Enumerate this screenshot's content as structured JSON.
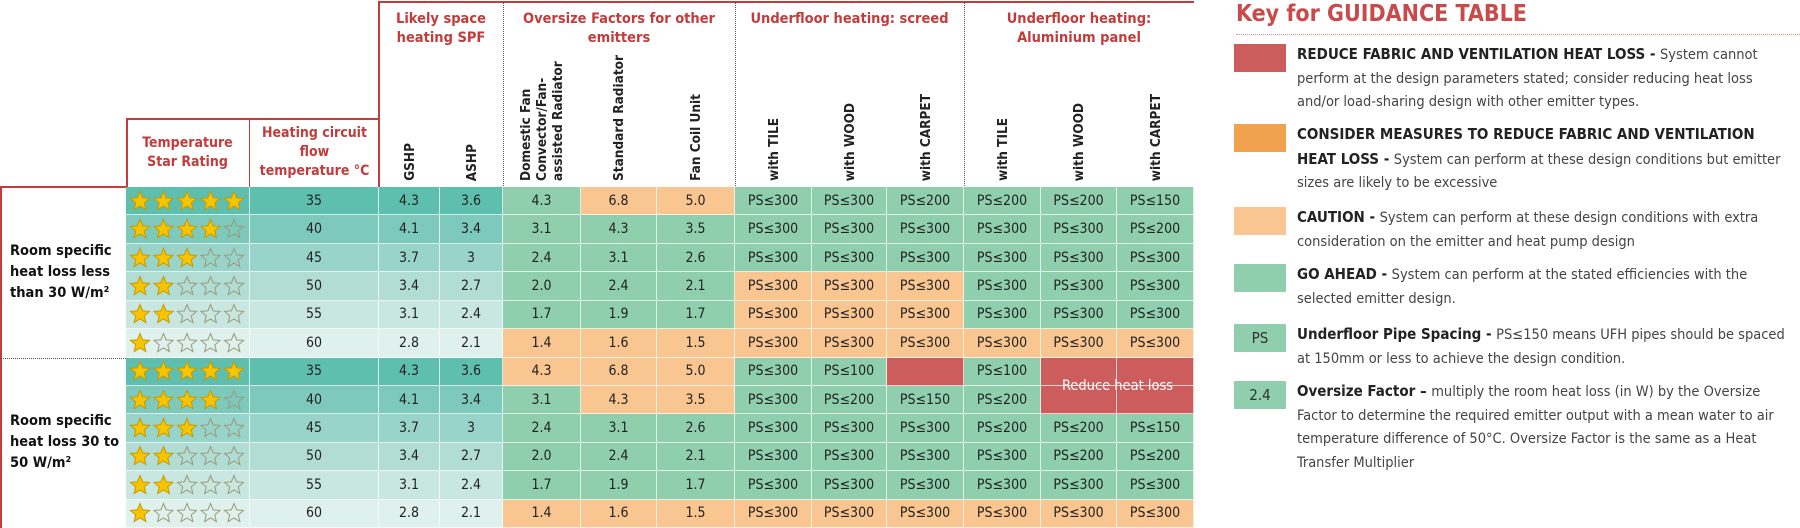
{
  "table": {
    "star_header": "Temperature Star Rating",
    "flow_header": "Heating circuit flow temperature °C",
    "groups": [
      {
        "label": "Likely space heating SPF",
        "columns": [
          "GSHP",
          "ASHP"
        ]
      },
      {
        "label": "Oversize Factors for other emitters",
        "columns": [
          "Domestic Fan Convector/Fan-assisted Radiator",
          "Standard Radiator",
          "Fan Coil Unit"
        ]
      },
      {
        "label": "Underfloor heating: screed",
        "columns": [
          "with TILE",
          "with WOOD",
          "with CARPET"
        ]
      },
      {
        "label": "Underfloor heating: Aluminium panel",
        "columns": [
          "with TILE",
          "with WOOD",
          "with CARPET"
        ]
      }
    ],
    "sections": [
      {
        "label": "Room specific heat loss less than 30 W/m²",
        "rows": [
          {
            "stars": 5,
            "flow": "35",
            "cells": [
              "4.3",
              "3.6",
              "4.3",
              "6.8",
              "5.0",
              "PS≤300",
              "PS≤300",
              "PS≤200",
              "PS≤200",
              "PS≤200",
              "PS≤150"
            ],
            "fills": [
              "#5fbfae",
              "#5fbfae",
              "#8fcfae",
              "#f9c590",
              "#f9c590",
              "#8fcfae",
              "#8fcfae",
              "#8fcfae",
              "#8fcfae",
              "#8fcfae",
              "#8fcfae"
            ]
          },
          {
            "stars": 4,
            "flow": "40",
            "cells": [
              "4.1",
              "3.4",
              "3.1",
              "4.3",
              "3.5",
              "PS≤300",
              "PS≤300",
              "PS≤300",
              "PS≤300",
              "PS≤300",
              "PS≤200"
            ],
            "fills": [
              "#7dcabc",
              "#7dcabc",
              "#8fcfae",
              "#8fcfae",
              "#8fcfae",
              "#8fcfae",
              "#8fcfae",
              "#8fcfae",
              "#8fcfae",
              "#8fcfae",
              "#8fcfae"
            ]
          },
          {
            "stars": 3,
            "flow": "45",
            "cells": [
              "3.7",
              "3",
              "2.4",
              "3.1",
              "2.6",
              "PS≤300",
              "PS≤300",
              "PS≤300",
              "PS≤300",
              "PS≤300",
              "PS≤300"
            ],
            "fills": [
              "#98d4c9",
              "#98d4c9",
              "#8fcfae",
              "#8fcfae",
              "#8fcfae",
              "#8fcfae",
              "#8fcfae",
              "#8fcfae",
              "#8fcfae",
              "#8fcfae",
              "#8fcfae"
            ]
          },
          {
            "stars": 2,
            "flow": "50",
            "cells": [
              "3.4",
              "2.7",
              "2.0",
              "2.4",
              "2.1",
              "PS≤300",
              "PS≤300",
              "PS≤300",
              "PS≤300",
              "PS≤300",
              "PS≤300"
            ],
            "fills": [
              "#b1ddd4",
              "#b1ddd4",
              "#8fcfae",
              "#8fcfae",
              "#8fcfae",
              "#f9c590",
              "#f9c590",
              "#f9c590",
              "#8fcfae",
              "#8fcfae",
              "#8fcfae"
            ]
          },
          {
            "stars": 2,
            "flow": "55",
            "cells": [
              "3.1",
              "2.4",
              "1.7",
              "1.9",
              "1.7",
              "PS≤300",
              "PS≤300",
              "PS≤300",
              "PS≤300",
              "PS≤300",
              "PS≤300"
            ],
            "fills": [
              "#c8e7e0",
              "#c8e7e0",
              "#8fcfae",
              "#8fcfae",
              "#8fcfae",
              "#f9c590",
              "#f9c590",
              "#f9c590",
              "#8fcfae",
              "#8fcfae",
              "#8fcfae"
            ]
          },
          {
            "stars": 1,
            "flow": "60",
            "cells": [
              "2.8",
              "2.1",
              "1.4",
              "1.6",
              "1.5",
              "PS≤300",
              "PS≤300",
              "PS≤300",
              "PS≤300",
              "PS≤300",
              "PS≤300"
            ],
            "fills": [
              "#dff1ec",
              "#dff1ec",
              "#f9c590",
              "#f9c590",
              "#f9c590",
              "#f9c590",
              "#f9c590",
              "#f9c590",
              "#f9c590",
              "#f9c590",
              "#f9c590"
            ]
          }
        ]
      },
      {
        "label": "Room specific heat loss 30 to 50 W/m²",
        "note": "Reduce heat loss",
        "rows": [
          {
            "stars": 5,
            "flow": "35",
            "cells": [
              "4.3",
              "3.6",
              "4.3",
              "6.8",
              "5.0",
              "PS≤300",
              "PS≤100",
              null,
              "PS≤100",
              null,
              null
            ],
            "fills": [
              "#5fbfae",
              "#5fbfae",
              "#f9c590",
              "#f9c590",
              "#f9c590",
              "#8fcfae",
              "#8fcfae",
              "#cd5c5c",
              "#8fcfae",
              "#cd5c5c",
              "#cd5c5c"
            ]
          },
          {
            "stars": 4,
            "flow": "40",
            "cells": [
              "4.1",
              "3.4",
              "3.1",
              "4.3",
              "3.5",
              "PS≤300",
              "PS≤200",
              "PS≤150",
              "PS≤200",
              null,
              null
            ],
            "fills": [
              "#7dcabc",
              "#7dcabc",
              "#8fcfae",
              "#f9c590",
              "#f9c590",
              "#8fcfae",
              "#8fcfae",
              "#8fcfae",
              "#8fcfae",
              "#cd5c5c",
              "#cd5c5c"
            ]
          },
          {
            "stars": 3,
            "flow": "45",
            "cells": [
              "3.7",
              "3",
              "2.4",
              "3.1",
              "2.6",
              "PS≤300",
              "PS≤300",
              "PS≤300",
              "PS≤200",
              "PS≤200",
              "PS≤150"
            ],
            "fills": [
              "#98d4c9",
              "#98d4c9",
              "#8fcfae",
              "#8fcfae",
              "#8fcfae",
              "#8fcfae",
              "#8fcfae",
              "#8fcfae",
              "#8fcfae",
              "#8fcfae",
              "#8fcfae"
            ]
          },
          {
            "stars": 2,
            "flow": "50",
            "cells": [
              "3.4",
              "2.7",
              "2.0",
              "2.4",
              "2.1",
              "PS≤300",
              "PS≤300",
              "PS≤300",
              "PS≤300",
              "PS≤200",
              "PS≤200"
            ],
            "fills": [
              "#b1ddd4",
              "#b1ddd4",
              "#8fcfae",
              "#8fcfae",
              "#8fcfae",
              "#8fcfae",
              "#8fcfae",
              "#8fcfae",
              "#8fcfae",
              "#8fcfae",
              "#8fcfae"
            ]
          },
          {
            "stars": 2,
            "flow": "55",
            "cells": [
              "3.1",
              "2.4",
              "1.7",
              "1.9",
              "1.7",
              "PS≤300",
              "PS≤300",
              "PS≤300",
              "PS≤300",
              "PS≤300",
              "PS≤300"
            ],
            "fills": [
              "#c8e7e0",
              "#c8e7e0",
              "#8fcfae",
              "#8fcfae",
              "#8fcfae",
              "#8fcfae",
              "#8fcfae",
              "#8fcfae",
              "#8fcfae",
              "#8fcfae",
              "#8fcfae"
            ]
          },
          {
            "stars": 1,
            "flow": "60",
            "cells": [
              "2.8",
              "2.1",
              "1.4",
              "1.6",
              "1.5",
              "PS≤300",
              "PS≤300",
              "PS≤300",
              "PS≤300",
              "PS≤300",
              "PS≤300"
            ],
            "fills": [
              "#dff1ec",
              "#dff1ec",
              "#f9c590",
              "#f9c590",
              "#f9c590",
              "#f9c590",
              "#f9c590",
              "#f9c590",
              "#f9c590",
              "#f9c590",
              "#f9c590"
            ]
          }
        ]
      }
    ]
  },
  "key": {
    "title": "Key for GUIDANCE TABLE",
    "items": [
      {
        "swatch": "#cd5c5c",
        "heading": "REDUCE FABRIC AND VENTILATION HEAT LOSS -",
        "text": "System cannot perform at the design parameters stated; consider reducing heat loss and/or load-sharing design with other emitter types."
      },
      {
        "swatch": "#f0a24f",
        "heading": "CONSIDER MEASURES TO REDUCE FABRIC AND VENTILATION HEAT LOSS -",
        "text": "System can perform at these design conditions but emitter sizes are likely to be excessive"
      },
      {
        "swatch": "#f9c590",
        "heading": "CAUTION -",
        "text": "System can perform at these design conditions with extra consideration on the emitter and heat pump design"
      },
      {
        "swatch": "#8fcfae",
        "heading": "GO AHEAD -",
        "text": "System can perform at the stated efficiencies with the selected emitter design."
      },
      {
        "swatch": "#8fcfae",
        "swatch_label": "PS",
        "heading": "Underfloor Pipe Spacing -",
        "text": "PS≤150 means UFH pipes should be spaced at 150mm or less to achieve the design condition."
      },
      {
        "swatch": "#8fcfae",
        "swatch_label": "2.4",
        "heading": "Oversize Factor –",
        "text": "multiply the room heat loss (in W) by the Oversize Factor to determine the required emitter output with a mean water to air temperature difference of 50°C. Oversize Factor is the same as a Heat Transfer Multiplier"
      }
    ]
  }
}
